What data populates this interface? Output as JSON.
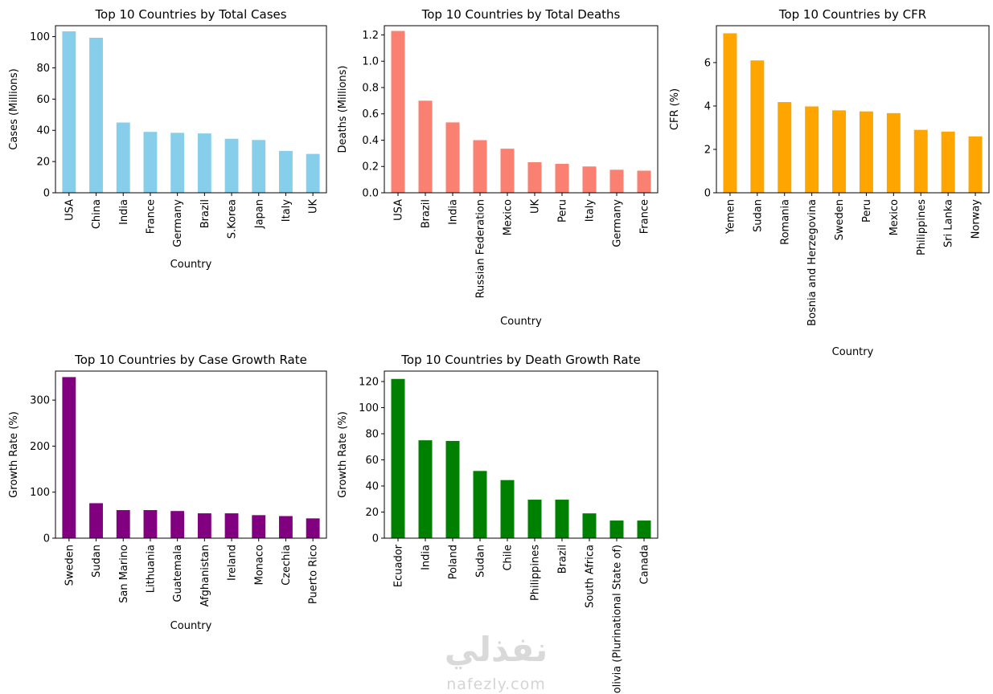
{
  "chart_data": [
    {
      "type": "bar",
      "title": "Top 10 Countries by Total Cases",
      "xlabel": "Country",
      "ylabel": "Cases (Millions)",
      "categories": [
        "USA",
        "China",
        "India",
        "France",
        "Germany",
        "Brazil",
        "S.Korea",
        "Japan",
        "Italy",
        "UK"
      ],
      "values": [
        103.4,
        99.3,
        45.0,
        39.0,
        38.4,
        38.0,
        34.6,
        33.8,
        26.8,
        24.9
      ],
      "ylim": [
        0,
        107
      ],
      "yticks": [
        0,
        20,
        40,
        60,
        80,
        100
      ],
      "color": "#87ceeb",
      "grid": false
    },
    {
      "type": "bar",
      "title": "Top 10 Countries by Total Deaths",
      "xlabel": "Country",
      "ylabel": "Deaths (Millions)",
      "categories": [
        "USA",
        "Brazil",
        "India",
        "Russian Federation",
        "Mexico",
        "UK",
        "Peru",
        "Italy",
        "Germany",
        "France"
      ],
      "values": [
        1.23,
        0.7,
        0.535,
        0.4,
        0.335,
        0.232,
        0.22,
        0.2,
        0.175,
        0.168
      ],
      "ylim": [
        0,
        1.27
      ],
      "yticks": [
        0.0,
        0.2,
        0.4,
        0.6,
        0.8,
        1.0,
        1.2
      ],
      "ytick_decimals": 1,
      "color": "#fa8072",
      "grid": false
    },
    {
      "type": "bar",
      "title": "Top 10 Countries by CFR",
      "xlabel": "Country",
      "ylabel": "CFR (%)",
      "categories": [
        "Yemen",
        "Sudan",
        "Romania",
        "Bosnia and Herzegovina",
        "Sweden",
        "Peru",
        "Mexico",
        "Philippines",
        "Sri Lanka",
        "Norway"
      ],
      "values": [
        7.35,
        6.1,
        4.18,
        3.98,
        3.8,
        3.75,
        3.67,
        2.9,
        2.82,
        2.6
      ],
      "ylim": [
        0,
        7.7
      ],
      "yticks": [
        0,
        2,
        4,
        6
      ],
      "color": "#ffa500",
      "grid": false
    },
    {
      "type": "bar",
      "title": "Top 10 Countries by Case Growth Rate",
      "xlabel": "Country",
      "ylabel": "Growth Rate (%)",
      "categories": [
        "Sweden",
        "Sudan",
        "San Marino",
        "Lithuania",
        "Guatemala",
        "Afghanistan",
        "Ireland",
        "Monaco",
        "Czechia",
        "Puerto Rico"
      ],
      "values": [
        350,
        76,
        61,
        61,
        59,
        54,
        54,
        50,
        48,
        43
      ],
      "ylim": [
        0,
        363
      ],
      "yticks": [
        0,
        100,
        200,
        300
      ],
      "color": "#800080",
      "grid": false
    },
    {
      "type": "bar",
      "title": "Top 10 Countries by Death Growth Rate",
      "xlabel": "",
      "ylabel": "Growth Rate (%)",
      "categories": [
        "Ecuador",
        "India",
        "Poland",
        "Sudan",
        "Chile",
        "Philippines",
        "Brazil",
        "South Africa",
        "Bolivia (Plurinational State of)",
        "Canada"
      ],
      "values": [
        122,
        75,
        74.5,
        51.5,
        44.5,
        29.5,
        29.5,
        19,
        13.5,
        13.5
      ],
      "ylim": [
        0,
        128
      ],
      "yticks": [
        0,
        20,
        40,
        60,
        80,
        100,
        120
      ],
      "color": "#008000",
      "grid": false
    }
  ],
  "watermark": {
    "arabic": "نفذلي",
    "latin": "nafezly.com"
  }
}
